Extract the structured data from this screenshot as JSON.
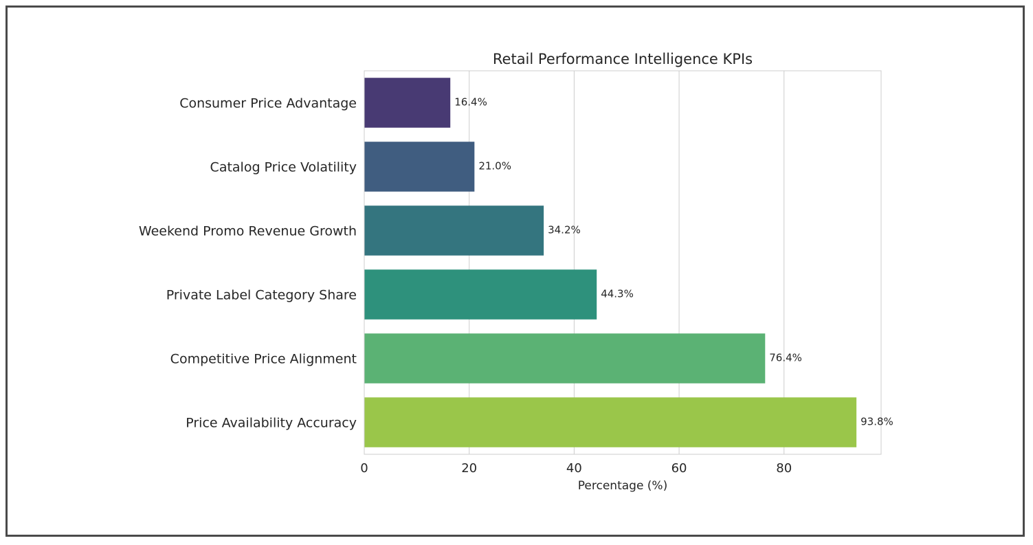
{
  "chart_data": {
    "type": "bar",
    "orientation": "horizontal",
    "title": "Retail Performance Intelligence KPIs",
    "xlabel": "Percentage (%)",
    "ylabel": "",
    "categories": [
      "Consumer Price Advantage",
      "Catalog Price Volatility",
      "Weekend Promo Revenue Growth",
      "Private Label Category Share",
      "Competitive Price Alignment",
      "Price Availability Accuracy"
    ],
    "values": [
      16.4,
      21.0,
      34.2,
      44.3,
      76.4,
      93.8
    ],
    "value_labels": [
      "16.4%",
      "21.0%",
      "34.2%",
      "44.3%",
      "76.4%",
      "93.8%"
    ],
    "colors": [
      "#483a73",
      "#405d80",
      "#34757f",
      "#2e917c",
      "#5bb274",
      "#9ac64a"
    ],
    "xlim": [
      0,
      98.5
    ],
    "xticks": [
      0,
      20,
      40,
      60,
      80
    ],
    "xtick_labels": [
      "0",
      "20",
      "40",
      "60",
      "80"
    ],
    "grid": "vertical",
    "legend": "none"
  }
}
